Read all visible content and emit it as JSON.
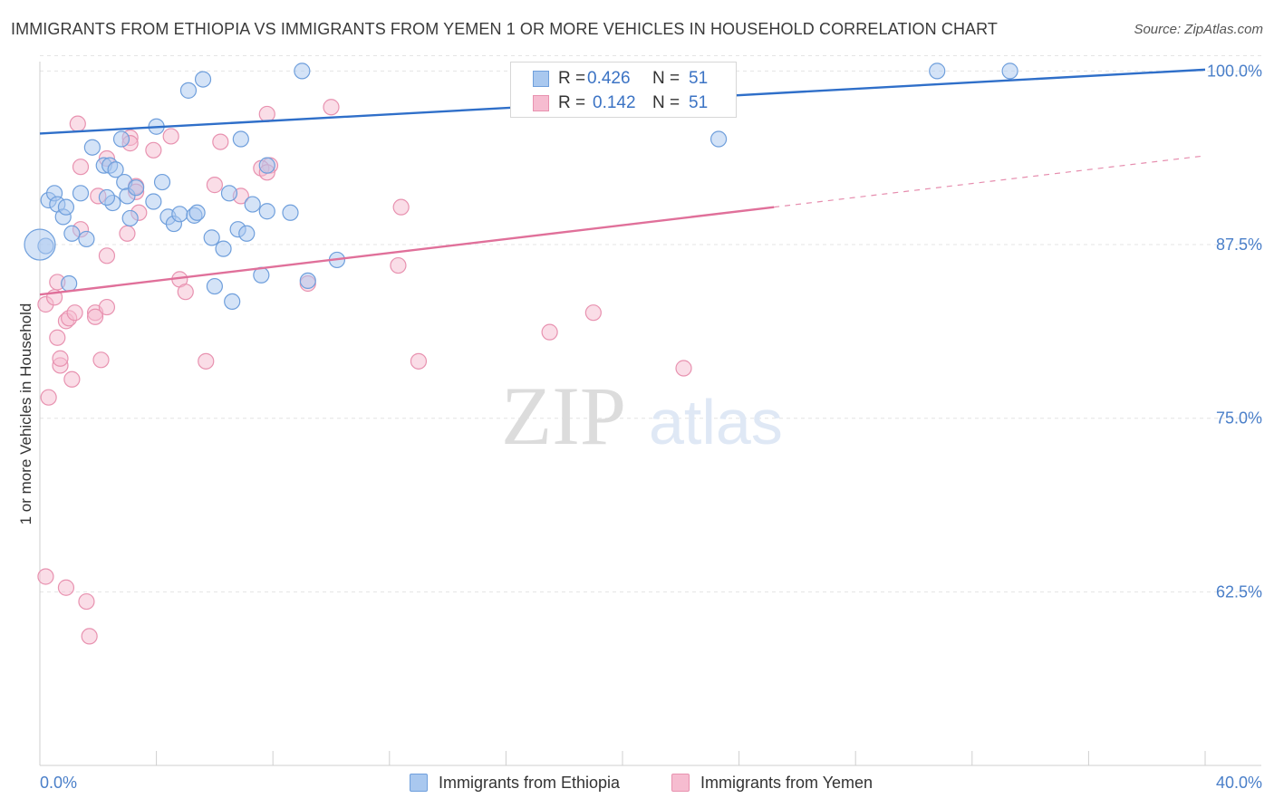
{
  "title": "IMMIGRANTS FROM ETHIOPIA VS IMMIGRANTS FROM YEMEN 1 OR MORE VEHICLES IN HOUSEHOLD CORRELATION CHART",
  "source": "Source: ZipAtlas.com",
  "watermark": {
    "zip": "ZIP",
    "atlas": "atlas"
  },
  "legend": {
    "r_label": "R =",
    "n_label": "N =",
    "series": [
      {
        "name": "Immigrants from Ethiopia",
        "r": "0.426",
        "n": "51"
      },
      {
        "name": "Immigrants from Yemen",
        "r": "0.142",
        "n": "51"
      }
    ]
  },
  "colors": {
    "ethiopia_fill": "#a9c8ef",
    "ethiopia_stroke": "#6f9fdc",
    "ethiopia_line": "#2f6fc9",
    "yemen_fill": "#f6bcd0",
    "yemen_stroke": "#e892b0",
    "yemen_line": "#e0709a",
    "grid": "#e4e4e4",
    "tick_text": "#4a7fc9"
  },
  "chart_data": {
    "type": "scatter",
    "title": "IMMIGRANTS FROM ETHIOPIA VS IMMIGRANTS FROM YEMEN 1 OR MORE VEHICLES IN HOUSEHOLD CORRELATION CHART",
    "xlabel": "",
    "ylabel": "1 or more Vehicles in Household",
    "xlim": [
      0,
      40
    ],
    "ylim": [
      50,
      101.2
    ],
    "x_tick_labels": [
      {
        "value": 0,
        "label": "0.0%"
      },
      {
        "value": 40,
        "label": "40.0%"
      }
    ],
    "y_ticks": [
      {
        "value": 100,
        "label": "100.0%"
      },
      {
        "value": 87.5,
        "label": "87.5%"
      },
      {
        "value": 75,
        "label": "75.0%"
      },
      {
        "value": 62.5,
        "label": "62.5%"
      }
    ],
    "series": [
      {
        "name": "Immigrants from Ethiopia",
        "r": 0.426,
        "n": 51,
        "trend": {
          "x": [
            0,
            40
          ],
          "y": [
            95.5,
            100.1
          ],
          "style": "solid"
        },
        "points": [
          [
            0.3,
            90.7
          ],
          [
            0.5,
            91.2
          ],
          [
            0.6,
            90.4
          ],
          [
            0.8,
            89.5
          ],
          [
            0.9,
            90.2
          ],
          [
            1.1,
            88.3
          ],
          [
            1.4,
            91.2
          ],
          [
            1.6,
            87.9
          ],
          [
            1.0,
            84.7
          ],
          [
            1.8,
            94.5
          ],
          [
            2.2,
            93.2
          ],
          [
            2.4,
            93.2
          ],
          [
            2.5,
            90.5
          ],
          [
            2.3,
            90.9
          ],
          [
            2.6,
            92.9
          ],
          [
            2.8,
            95.1
          ],
          [
            2.9,
            92.0
          ],
          [
            3.0,
            91.0
          ],
          [
            3.1,
            89.4
          ],
          [
            3.3,
            91.6
          ],
          [
            3.9,
            90.6
          ],
          [
            4.0,
            96.0
          ],
          [
            4.2,
            92.0
          ],
          [
            4.4,
            89.5
          ],
          [
            4.6,
            89.0
          ],
          [
            4.8,
            89.7
          ],
          [
            5.1,
            98.6
          ],
          [
            5.3,
            89.6
          ],
          [
            5.4,
            89.8
          ],
          [
            5.6,
            99.4
          ],
          [
            5.9,
            88.0
          ],
          [
            6.0,
            84.5
          ],
          [
            6.3,
            87.2
          ],
          [
            6.5,
            91.2
          ],
          [
            6.6,
            83.4
          ],
          [
            6.8,
            88.6
          ],
          [
            6.9,
            95.1
          ],
          [
            7.1,
            88.3
          ],
          [
            7.3,
            90.4
          ],
          [
            7.6,
            85.3
          ],
          [
            7.8,
            93.2
          ],
          [
            7.8,
            89.9
          ],
          [
            8.6,
            89.8
          ],
          [
            9.0,
            100.0
          ],
          [
            9.2,
            84.9
          ],
          [
            10.2,
            86.4
          ],
          [
            23.3,
            95.1
          ],
          [
            30.8,
            100.0
          ],
          [
            33.3,
            100.0
          ],
          [
            0.2,
            87.4
          ],
          [
            0.0,
            87.5
          ]
        ]
      },
      {
        "name": "Immigrants from Yemen",
        "r": 0.142,
        "n": 51,
        "trend": {
          "x": [
            0,
            40
          ],
          "y": [
            83.9,
            93.9
          ],
          "style": "solid-then-dashed",
          "dash_from_x": 25.2
        },
        "points": [
          [
            0.2,
            83.2
          ],
          [
            0.3,
            76.5
          ],
          [
            0.5,
            83.7
          ],
          [
            0.6,
            84.8
          ],
          [
            0.6,
            80.8
          ],
          [
            0.7,
            78.8
          ],
          [
            0.7,
            79.3
          ],
          [
            0.9,
            82.0
          ],
          [
            1.0,
            82.2
          ],
          [
            1.2,
            82.6
          ],
          [
            1.1,
            77.8
          ],
          [
            1.3,
            96.2
          ],
          [
            1.4,
            93.1
          ],
          [
            1.4,
            88.6
          ],
          [
            1.9,
            82.6
          ],
          [
            1.9,
            82.3
          ],
          [
            2.0,
            91.0
          ],
          [
            2.1,
            79.2
          ],
          [
            2.3,
            83.0
          ],
          [
            2.3,
            93.7
          ],
          [
            2.3,
            86.7
          ],
          [
            3.0,
            88.3
          ],
          [
            3.1,
            95.2
          ],
          [
            3.1,
            94.8
          ],
          [
            3.3,
            91.7
          ],
          [
            3.3,
            91.3
          ],
          [
            3.4,
            89.8
          ],
          [
            3.9,
            94.3
          ],
          [
            4.5,
            95.3
          ],
          [
            4.8,
            85.0
          ],
          [
            5.0,
            84.1
          ],
          [
            5.7,
            79.1
          ],
          [
            6.0,
            91.8
          ],
          [
            6.2,
            94.9
          ],
          [
            6.9,
            91.0
          ],
          [
            7.8,
            96.9
          ],
          [
            7.9,
            93.2
          ],
          [
            7.6,
            93.0
          ],
          [
            7.8,
            92.7
          ],
          [
            9.2,
            84.7
          ],
          [
            10.0,
            97.4
          ],
          [
            12.3,
            86.0
          ],
          [
            12.4,
            90.2
          ],
          [
            13.0,
            79.1
          ],
          [
            17.5,
            81.2
          ],
          [
            19.0,
            82.6
          ],
          [
            22.1,
            78.6
          ],
          [
            0.2,
            63.6
          ],
          [
            0.9,
            62.8
          ],
          [
            1.6,
            61.8
          ],
          [
            1.7,
            59.3
          ]
        ]
      }
    ]
  }
}
